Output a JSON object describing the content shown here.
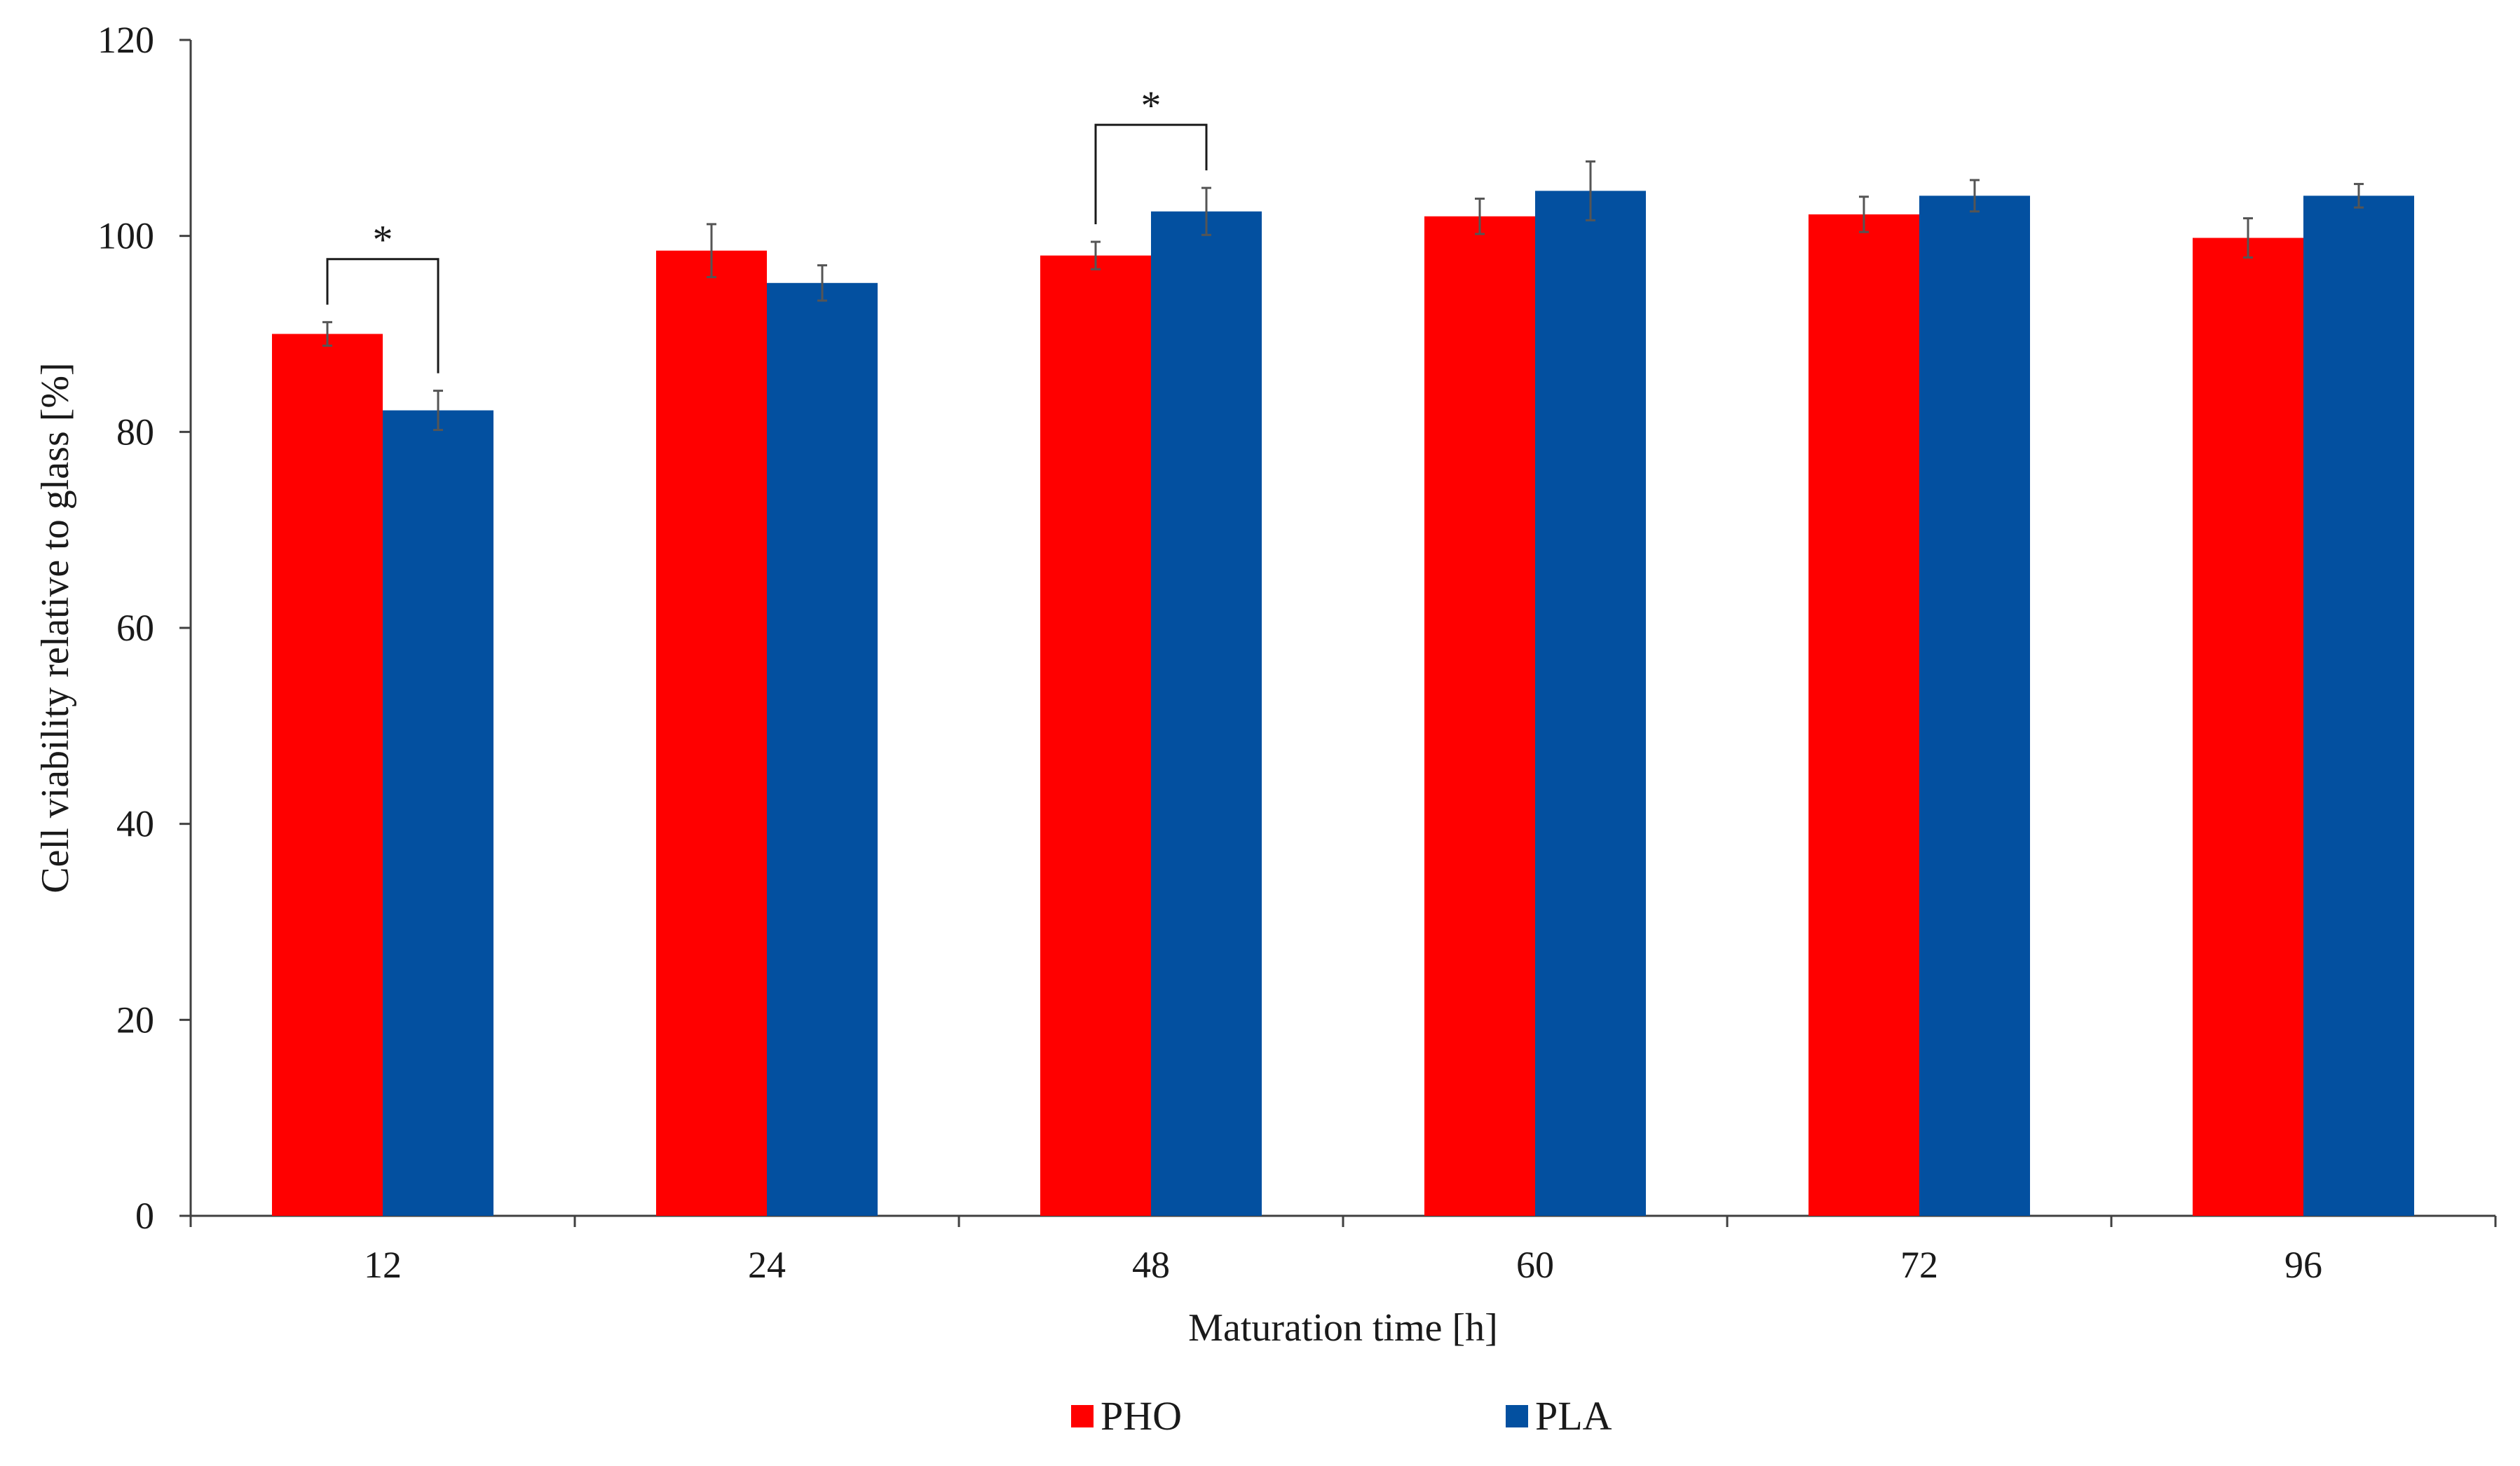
{
  "chart_data": {
    "type": "bar",
    "title": "",
    "xlabel": "Maturation time [h]",
    "ylabel": "Cell viability relative to glass [%]",
    "ylim": [
      0,
      120
    ],
    "yticks": [
      "0",
      "20",
      "40",
      "60",
      "80",
      "100",
      "120"
    ],
    "categories": [
      "12",
      "24",
      "48",
      "60",
      "72",
      "96"
    ],
    "series": [
      {
        "name": "PHO",
        "color": "#ff0000",
        "values": [
          90,
          98.5,
          98,
          102,
          102.2,
          99.8
        ],
        "errors": [
          1.2,
          2.7,
          1.4,
          1.8,
          1.8,
          2.0
        ]
      },
      {
        "name": "PLA",
        "color": "#0350a0",
        "values": [
          82.2,
          95.2,
          102.5,
          104.6,
          104.1,
          104.1
        ],
        "errors": [
          2.0,
          1.8,
          2.4,
          3.0,
          1.6,
          1.2
        ]
      }
    ],
    "significance": [
      {
        "category": "12",
        "label": "*"
      },
      {
        "category": "48",
        "label": "*"
      }
    ],
    "legend_position": "bottom-center",
    "grid": false
  }
}
